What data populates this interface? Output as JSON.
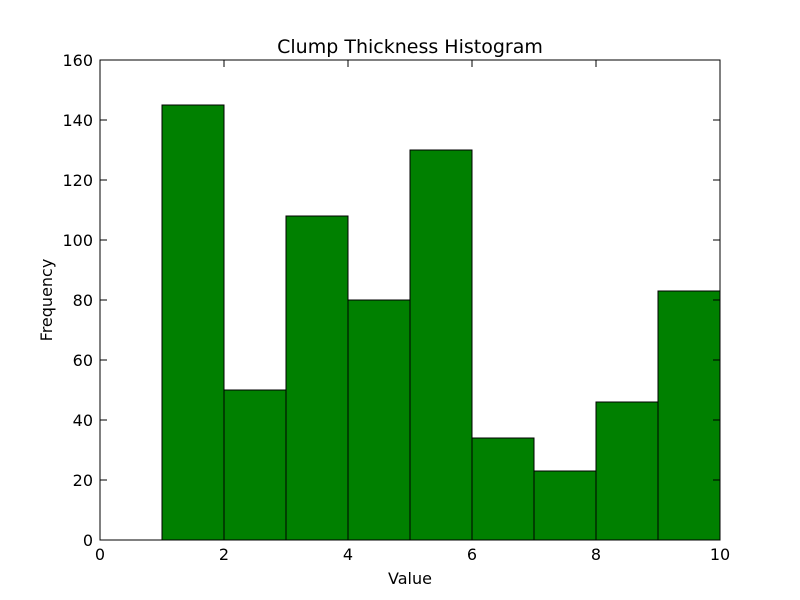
{
  "chart_data": {
    "type": "bar",
    "title": "Clump Thickness Histogram",
    "xlabel": "Value",
    "ylabel": "Frequency",
    "xlim": [
      0,
      10
    ],
    "ylim": [
      0,
      160
    ],
    "xticks": [
      "0",
      "2",
      "4",
      "6",
      "8",
      "10"
    ],
    "yticks": [
      "0",
      "20",
      "40",
      "60",
      "80",
      "100",
      "120",
      "140",
      "160"
    ],
    "bins": [
      {
        "x0": 0,
        "x1": 1,
        "value": 0
      },
      {
        "x0": 1,
        "x1": 2,
        "value": 145
      },
      {
        "x0": 2,
        "x1": 3,
        "value": 50
      },
      {
        "x0": 3,
        "x1": 4,
        "value": 108
      },
      {
        "x0": 4,
        "x1": 5,
        "value": 80
      },
      {
        "x0": 5,
        "x1": 6,
        "value": 130
      },
      {
        "x0": 6,
        "x1": 7,
        "value": 34
      },
      {
        "x0": 7,
        "x1": 8,
        "value": 23
      },
      {
        "x0": 8,
        "x1": 9,
        "value": 46
      },
      {
        "x0": 9,
        "x1": 10,
        "value": 83
      }
    ],
    "bar_color": "#008000",
    "edge_color": "#000000",
    "grid": false,
    "legend": "none"
  }
}
